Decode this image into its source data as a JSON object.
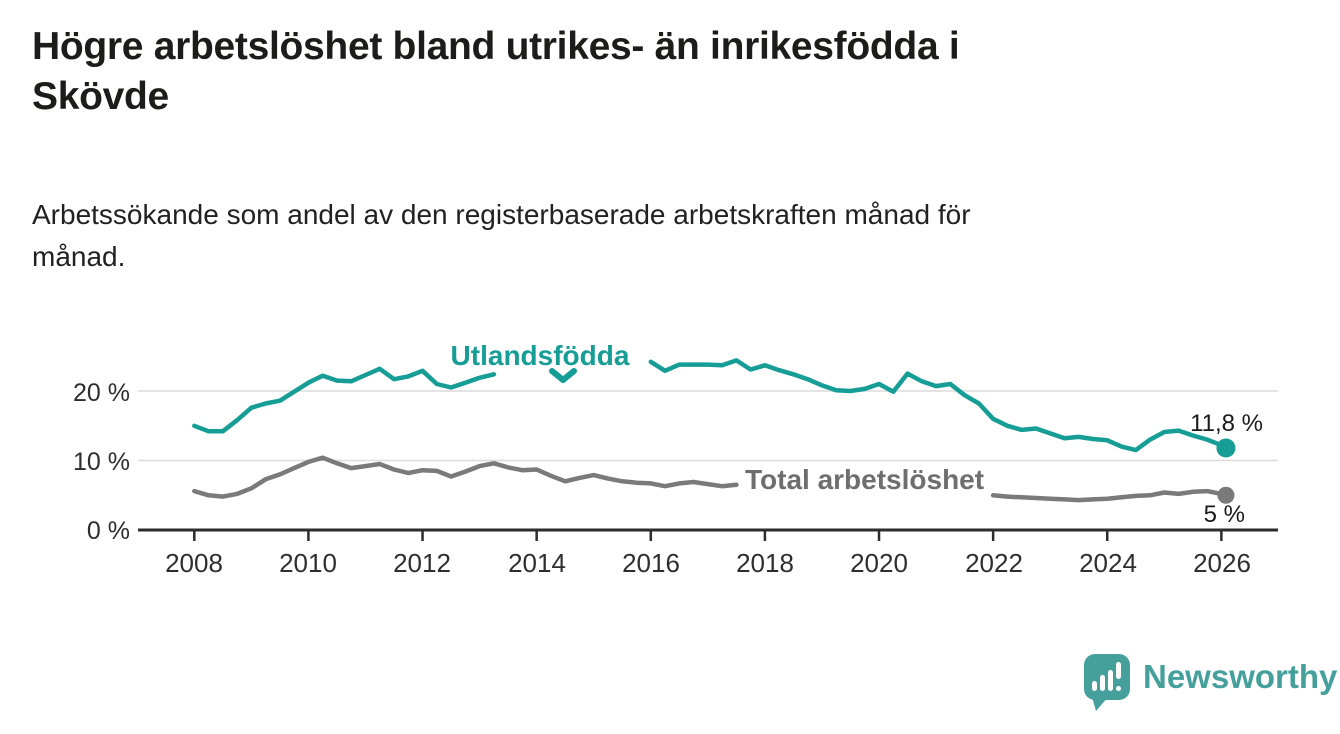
{
  "title": {
    "line1": "Högre arbetslöshet bland utrikes- än inrikesfödda i",
    "line2": "Skövde"
  },
  "subtitle": {
    "line1": "Arbetssökande som andel av den registerbaserade arbetskraften månad för",
    "line2": "månad."
  },
  "y_axis": {
    "ticks": [
      "20 %",
      "10 %",
      "0 %"
    ]
  },
  "colors": {
    "utlandsfodda": "#169e96",
    "total": "#7a7a7a",
    "total_label": "#6e6e6e",
    "axis": "#2d2d2d",
    "grid": "#dcdcdc",
    "logo": "#45a09c"
  },
  "chart_data": {
    "type": "line",
    "title": "Högre arbetslöshet bland utrikes- än inrikesfödda i Skövde",
    "subtitle": "Arbetssökande som andel av den registerbaserade arbetskraften månad för månad.",
    "xlabel": "",
    "ylabel": "",
    "ylim": [
      0,
      26
    ],
    "y_gridlines": [
      10,
      20
    ],
    "grid": "horizontal",
    "legend_position": "inline-labels",
    "x_ticks": [
      2008,
      2010,
      2012,
      2014,
      2016,
      2018,
      2020,
      2022,
      2024,
      2026
    ],
    "x_tick_labels": [
      "2008",
      "2010",
      "2012",
      "2014",
      "2016",
      "2018",
      "2020",
      "2022",
      "2024",
      "2026"
    ],
    "x": [
      2008,
      2008.25,
      2008.5,
      2008.75,
      2009,
      2009.25,
      2009.5,
      2009.75,
      2010,
      2010.25,
      2010.5,
      2010.75,
      2011,
      2011.25,
      2011.5,
      2011.75,
      2012,
      2012.25,
      2012.5,
      2012.75,
      2013,
      2013.25,
      2013.5,
      2013.75,
      2014,
      2014.25,
      2014.5,
      2014.75,
      2015,
      2015.25,
      2015.5,
      2015.75,
      2016,
      2016.25,
      2016.5,
      2016.75,
      2017,
      2017.25,
      2017.5,
      2017.75,
      2018,
      2018.25,
      2018.5,
      2018.75,
      2019,
      2019.25,
      2019.5,
      2019.75,
      2020,
      2020.25,
      2020.5,
      2020.75,
      2021,
      2021.25,
      2021.5,
      2021.75,
      2022,
      2022.25,
      2022.5,
      2022.75,
      2023,
      2023.25,
      2023.5,
      2023.75,
      2024,
      2024.25,
      2024.5,
      2024.75,
      2025,
      2025.25,
      2025.5,
      2025.75,
      2026,
      2026.08
    ],
    "series": [
      {
        "name": "Utlandsfödda",
        "color": "#169e96",
        "end_label": "11,8 %",
        "end_value": 11.8,
        "values": [
          15.0,
          14.2,
          14.2,
          15.8,
          17.6,
          18.2,
          18.6,
          19.9,
          21.2,
          22.2,
          21.5,
          21.4,
          22.3,
          23.2,
          21.7,
          22.1,
          22.9,
          21.0,
          20.5,
          21.2,
          21.9,
          22.4,
          null,
          null,
          null,
          null,
          null,
          null,
          null,
          null,
          null,
          null,
          24.2,
          22.9,
          23.8,
          23.8,
          23.8,
          23.7,
          24.4,
          23.1,
          23.7,
          23.0,
          22.4,
          21.7,
          20.8,
          20.1,
          20.0,
          20.3,
          21.0,
          19.9,
          22.5,
          21.4,
          20.7,
          21.0,
          19.4,
          18.2,
          16.0,
          15.0,
          14.4,
          14.6,
          13.9,
          13.2,
          13.4,
          13.1,
          12.9,
          12.0,
          11.5,
          13.0,
          14.1,
          14.3,
          13.6,
          13.0,
          12.2,
          11.8
        ]
      },
      {
        "name": "Total arbetslöshet",
        "color": "#7a7a7a",
        "end_label": "5 %",
        "end_value": 5.0,
        "values": [
          5.6,
          5.0,
          4.8,
          5.2,
          6.0,
          7.3,
          8.0,
          8.9,
          9.8,
          10.4,
          9.6,
          8.9,
          9.2,
          9.5,
          8.7,
          8.2,
          8.6,
          8.5,
          7.7,
          8.4,
          9.2,
          9.6,
          9.0,
          8.6,
          8.7,
          7.8,
          7.0,
          7.5,
          7.9,
          7.4,
          7.0,
          6.8,
          6.7,
          6.3,
          6.7,
          6.9,
          6.6,
          6.3,
          6.5,
          null,
          null,
          null,
          null,
          null,
          null,
          null,
          null,
          null,
          null,
          null,
          null,
          null,
          null,
          null,
          null,
          null,
          5.0,
          4.8,
          4.7,
          4.6,
          4.5,
          4.4,
          4.3,
          4.4,
          4.5,
          4.7,
          4.9,
          5.0,
          5.4,
          5.2,
          5.5,
          5.6,
          5.2,
          5.0
        ]
      }
    ]
  },
  "branding": {
    "logo_text": "Newsworthy"
  }
}
